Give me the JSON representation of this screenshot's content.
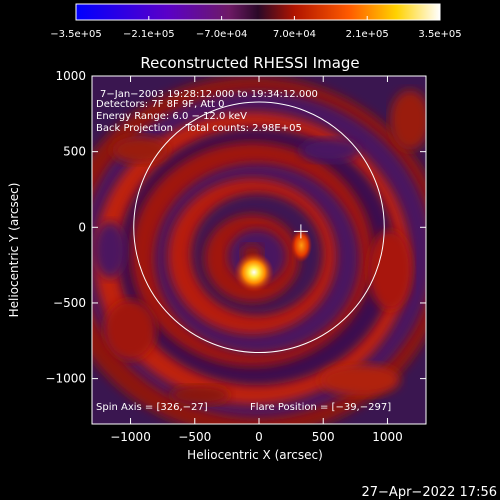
{
  "chart_data": {
    "type": "heatmap",
    "title": "Reconstructed RHESSI Image",
    "xlabel": "Heliocentric X (arcsec)",
    "ylabel": "Heliocentric Y (arcsec)",
    "xlim": [
      -1300,
      1300
    ],
    "ylim": [
      -1300,
      1000
    ],
    "xticks": [
      -1000,
      -500,
      0,
      500,
      1000
    ],
    "xtick_labels": [
      "−1000",
      "−500",
      "0",
      "500",
      "1000"
    ],
    "yticks": [
      -1000,
      -500,
      0,
      500,
      1000
    ],
    "ytick_labels": [
      "−1000",
      "−500",
      "0",
      "500",
      "1000"
    ],
    "colorbar": {
      "range": [
        -350000,
        350000
      ],
      "ticks": [
        -350000,
        -210000,
        -70000,
        70000,
        210000,
        350000
      ],
      "tick_labels": [
        "−3.5e+05",
        "−2.1e+05",
        "−7.0e+04",
        "7.0e+04",
        "2.1e+05",
        "3.5e+05"
      ],
      "colormap": [
        "#0000ff",
        "#5a00c8",
        "#7a1e6e",
        "#3a0a3a",
        "#cc1a00",
        "#ff7f00",
        "#ffe600",
        "#ffffff"
      ]
    },
    "annotations": [
      "7−Jan−2003 19:28:12.000 to 19:34:12.000",
      "Detectors: 7F 8F 9F, Att 0",
      "Energy Range: 6.0 − 12.0 keV",
      "Back Projection    Total counts: 2.98E+05"
    ],
    "spin_axis_label": "Spin Axis = [326,−27]",
    "flare_position_label": "Flare Position = [−39,−297]",
    "spin_axis": [
      326,
      -27
    ],
    "flare_position": [
      -39,
      -297
    ],
    "solar_limb_radius": 975,
    "sources": [
      {
        "x": -39,
        "y": -297,
        "peak": 350000
      },
      {
        "x": 330,
        "y": -120,
        "peak": 180000
      }
    ]
  },
  "timestamp": "27−Apr−2022 17:56"
}
